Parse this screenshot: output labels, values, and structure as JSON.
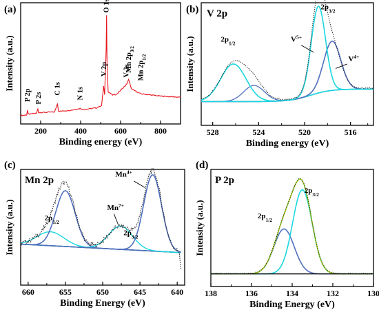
{
  "figure": {
    "panels": [
      "(a)",
      "(b)",
      "(c)",
      "(d)"
    ],
    "colors": {
      "red": "#e8141c",
      "gray": "#8a8a8a",
      "cyan": "#1ad6df",
      "blue": "#4f6fbe",
      "green": "#22c55e",
      "dotted": "#2a2a2a",
      "envelope": "#d4c600"
    }
  },
  "chart_data": [
    {
      "panel": "(a)",
      "type": "line",
      "title": "",
      "xlabel": "Binding energy (eV)",
      "ylabel": "Intensity (a.u.)",
      "xlim": [
        100,
        900
      ],
      "xticks": [
        "200",
        "400",
        "600",
        "800"
      ],
      "series": [
        {
          "x": [
            100,
            130,
            134,
            138,
            180,
            186,
            190,
            270,
            284,
            290,
            350,
            398,
            410,
            480,
            505,
            515,
            520,
            528,
            530,
            532,
            538,
            560,
            580,
            630,
            640,
            646,
            655,
            700,
            800,
            900
          ],
          "values": [
            5,
            6,
            14,
            7,
            9,
            17,
            10,
            11,
            25,
            12,
            14,
            17,
            15,
            18,
            22,
            55,
            40,
            120,
            175,
            95,
            45,
            40,
            41,
            58,
            66,
            60,
            50,
            42,
            38,
            36
          ]
        }
      ],
      "annotations": [
        {
          "text": "P 2p",
          "x": 134
        },
        {
          "text": "P 2s",
          "x": 190
        },
        {
          "text": "C 1s",
          "x": 284
        },
        {
          "text": "N 1s",
          "x": 398
        },
        {
          "text": "V 2p",
          "x": 517
        },
        {
          "text": "O 1s",
          "x": 530
        },
        {
          "text": "V 2s",
          "x": 630
        },
        {
          "text": "Mn 2p3/2",
          "x": 642
        },
        {
          "text": "Mn 2p1/2",
          "x": 654
        }
      ]
    },
    {
      "panel": "(b)",
      "type": "line",
      "title": "V 2p",
      "xlabel": "Binding energy (eV)",
      "ylabel": "Intensity (a.u.)",
      "xlim": [
        529,
        514
      ],
      "xticks": [
        "528",
        "524",
        "520",
        "516"
      ],
      "peaks": [
        {
          "label": "2p1/2",
          "center": 526.2
        },
        {
          "label": "V5+",
          "center": 518.8
        },
        {
          "label": "V4+",
          "center": 517.6
        },
        {
          "label": "2p3/2",
          "center": 518.8
        }
      ]
    },
    {
      "panel": "(c)",
      "type": "line",
      "title": "Mn 2p",
      "xlabel": "Binding Energy (eV)",
      "ylabel": "Intensity (a.u.)",
      "xlim": [
        661,
        639
      ],
      "xticks": [
        "660",
        "655",
        "650",
        "645",
        "640"
      ],
      "peaks": [
        {
          "label": "2p1/2",
          "center": 655.0
        },
        {
          "label": "Mn7+",
          "center": 647.6
        },
        {
          "label": "Mn4+",
          "center": 643.3
        },
        {
          "label": "2p3/2",
          "center": 643.3
        }
      ]
    },
    {
      "panel": "(d)",
      "type": "line",
      "title": "P 2p",
      "xlabel": "Binding Energy (eV)",
      "ylabel": "Intensity (a.u.)",
      "xlim": [
        138,
        130
      ],
      "xticks": [
        "138",
        "136",
        "134",
        "132",
        "130"
      ],
      "peaks": [
        {
          "label": "2p1/2",
          "center": 134.4
        },
        {
          "label": "2p3/2",
          "center": 133.5
        }
      ]
    }
  ]
}
